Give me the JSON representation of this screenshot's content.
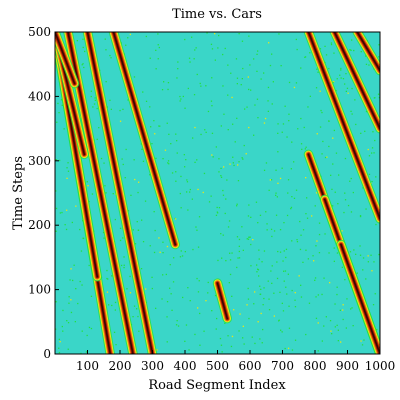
{
  "chart_data": {
    "type": "heatmap",
    "title": "Time vs. Cars",
    "xlabel": "Road Segment Index",
    "ylabel": "Time Steps",
    "xlim": [
      0,
      1000
    ],
    "ylim": [
      0,
      500
    ],
    "x_ticks": [
      100,
      200,
      300,
      400,
      500,
      600,
      700,
      800,
      900,
      1000
    ],
    "y_ticks": [
      0,
      100,
      200,
      300,
      400,
      500
    ],
    "colormap": {
      "background": "#3ad6c8",
      "low": "#22e044",
      "mid": "#e8e818",
      "high": "#f07010",
      "peak": "#a81800",
      "max": "#3a0800"
    },
    "bands": [
      {
        "x_start": 0,
        "x_end": 170,
        "t_start": 0,
        "t_end": 500
      },
      {
        "x_start": 40,
        "x_end": 240,
        "t_start": 0,
        "t_end": 500
      },
      {
        "x_start": 100,
        "x_end": 300,
        "t_start": 0,
        "t_end": 500
      },
      {
        "x_start": 0,
        "x_end": 130,
        "t_start": 120,
        "t_end": 500
      },
      {
        "x_start": 0,
        "x_end": 90,
        "t_start": 310,
        "t_end": 500
      },
      {
        "x_start": 180,
        "x_end": 370,
        "t_start": 170,
        "t_end": 500
      },
      {
        "x_start": 0,
        "x_end": 60,
        "t_start": 420,
        "t_end": 500
      },
      {
        "x_start": 500,
        "x_end": 530,
        "t_start": 55,
        "t_end": 110
      },
      {
        "x_start": 780,
        "x_end": 1000,
        "t_start": 0,
        "t_end": 310
      },
      {
        "x_start": 830,
        "x_end": 1000,
        "t_start": 0,
        "t_end": 240
      },
      {
        "x_start": 880,
        "x_end": 1000,
        "t_start": 0,
        "t_end": 170
      },
      {
        "x_start": 780,
        "x_end": 1000,
        "t_start": 210,
        "t_end": 500
      },
      {
        "x_start": 860,
        "x_end": 1000,
        "t_start": 350,
        "t_end": 500
      },
      {
        "x_start": 930,
        "x_end": 1000,
        "t_start": 440,
        "t_end": 500
      }
    ]
  }
}
